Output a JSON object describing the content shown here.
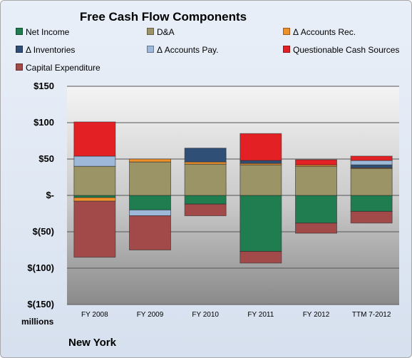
{
  "chart_data": {
    "type": "bar",
    "stacked": true,
    "title": "Free Cash Flow Components",
    "categories": [
      "FY 2008",
      "FY 2009",
      "FY 2010",
      "FY 2011",
      "FY 2012",
      "TTM 7-2012"
    ],
    "ylim": [
      -150,
      150
    ],
    "yticks": [
      150,
      100,
      50,
      0,
      -50,
      -100,
      -150
    ],
    "ytick_labels": [
      "$150",
      "$100",
      "$50",
      "$-",
      "$(50)",
      "$(100)",
      "$(150)"
    ],
    "units_label": "millions",
    "grid": true,
    "legend_position": "top",
    "series": [
      {
        "name": "Net Income",
        "color": "#1f7d4f",
        "values": [
          -3,
          -20,
          -12,
          -77,
          -38,
          -22
        ]
      },
      {
        "name": "D&A",
        "color": "#9b9466",
        "values": [
          40,
          46,
          43,
          42,
          40,
          37
        ]
      },
      {
        "name": "Δ Accounts Rec.",
        "color": "#f0902a",
        "values": [
          -5,
          4,
          3,
          2,
          2,
          1
        ]
      },
      {
        "name": "Δ Inventories",
        "color": "#2f4f77",
        "values": [
          0,
          0,
          19,
          4,
          0,
          4
        ]
      },
      {
        "name": "Δ Accounts Pay.",
        "color": "#9db8d9",
        "values": [
          14,
          -8,
          0,
          0,
          0,
          6
        ]
      },
      {
        "name": "Questionable Cash Sources",
        "color": "#e32024",
        "values": [
          47,
          0,
          0,
          37,
          7,
          6
        ]
      },
      {
        "name": "Capital Expenditure",
        "color": "#a24a4a",
        "values": [
          -77,
          -47,
          -16,
          -16,
          -14,
          -16
        ]
      }
    ],
    "subtitle": "New York"
  }
}
